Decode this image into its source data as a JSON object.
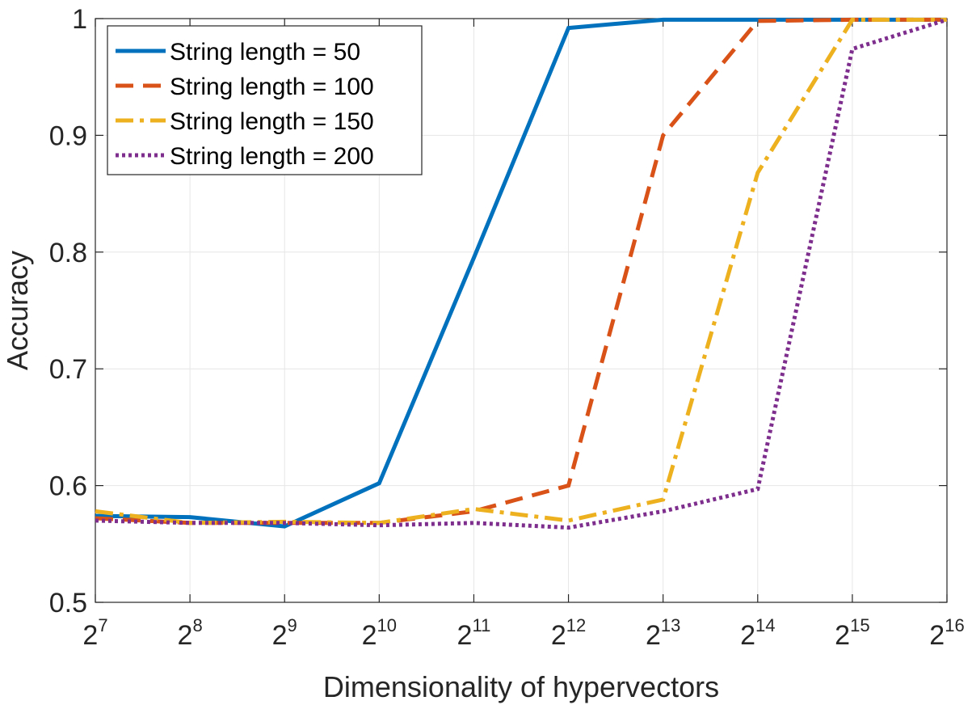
{
  "chart_data": {
    "type": "line",
    "xlabel": "Dimensionality of hypervectors",
    "ylabel": "Accuracy",
    "x": [
      7,
      8,
      9,
      10,
      11,
      12,
      13,
      14,
      15,
      16
    ],
    "x_tick_base": "2",
    "x_tick_exponents": [
      "7",
      "8",
      "9",
      "10",
      "11",
      "12",
      "13",
      "14",
      "15",
      "16"
    ],
    "ylim": [
      0.5,
      1.0
    ],
    "y_ticks": [
      "0.5",
      "0.6",
      "0.7",
      "0.8",
      "0.9",
      "1"
    ],
    "y_tick_values": [
      0.5,
      0.6,
      0.7,
      0.8,
      0.9,
      1.0
    ],
    "grid": true,
    "legend_position": "top-left",
    "series": [
      {
        "name": "String length = 50",
        "color": "#0072BD",
        "style": "solid",
        "values": [
          0.574,
          0.573,
          0.565,
          0.602,
          0.795,
          0.992,
          0.999,
          0.999,
          0.999,
          0.999
        ]
      },
      {
        "name": "String length = 100",
        "color": "#D95319",
        "style": "dashed",
        "values": [
          0.572,
          0.568,
          0.568,
          0.568,
          0.578,
          0.6,
          0.9,
          0.998,
          0.999,
          0.999
        ]
      },
      {
        "name": "String length = 150",
        "color": "#EDB120",
        "style": "dashdot",
        "values": [
          0.578,
          0.568,
          0.569,
          0.568,
          0.58,
          0.57,
          0.588,
          0.868,
          0.999,
          0.999
        ]
      },
      {
        "name": "String length = 200",
        "color": "#7E2F8E",
        "style": "dotted",
        "values": [
          0.57,
          0.568,
          0.568,
          0.566,
          0.568,
          0.564,
          0.578,
          0.597,
          0.974,
          0.999
        ]
      }
    ]
  }
}
